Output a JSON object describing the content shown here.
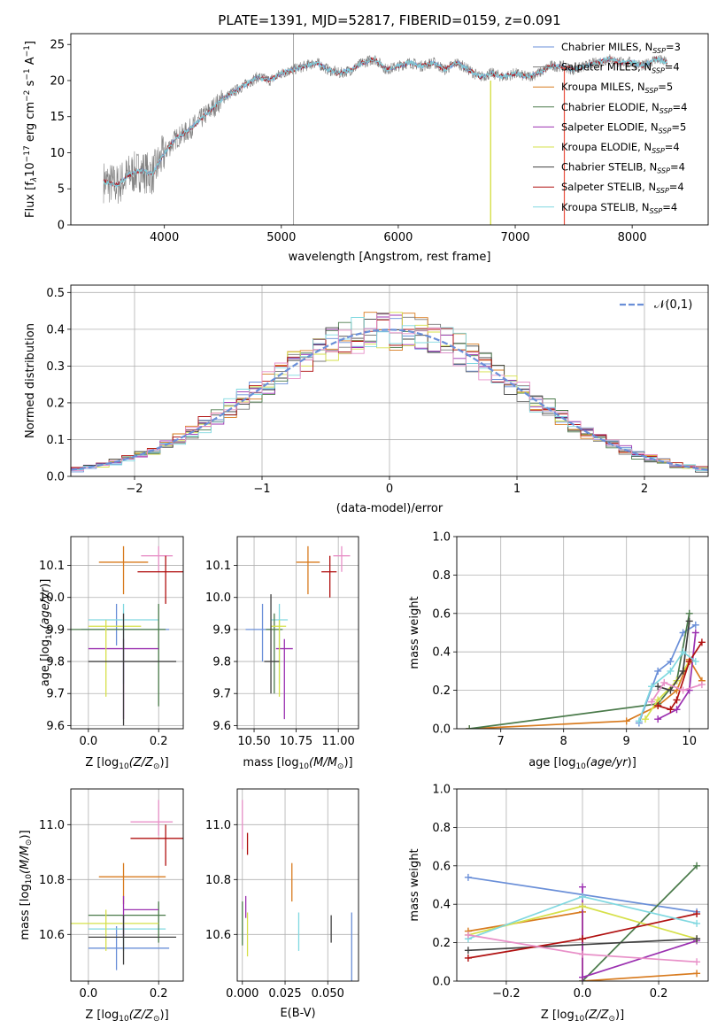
{
  "chart_data": [
    {
      "id": "spectrum",
      "type": "line",
      "title": "PLATE=1391, MJD=52817, FIBERID=0159, z=0.091",
      "xlabel": "wavelength [Angstrom, rest frame]",
      "ylabel": "Flux [f_λ10^-17 erg cm^-2 s^-1 A^-1]",
      "xlim": [
        3200,
        8650
      ],
      "ylim": [
        0,
        26.5
      ],
      "xticks": [
        4000,
        5000,
        6000,
        7000,
        8000
      ],
      "yticks": [
        0,
        5,
        10,
        15,
        20,
        25
      ],
      "observed_color": "#808080",
      "legend_location": "right",
      "series": [
        {
          "name": "Chabrier MILES, N_SSP=3",
          "color": "#6a8fd8"
        },
        {
          "name": "Salpeter MILES, N_SSP=4",
          "color": "#7a7a7a"
        },
        {
          "name": "Kroupa MILES, N_SSP=5",
          "color": "#d87b1f"
        },
        {
          "name": "Chabrier ELODIE, N_SSP=4",
          "color": "#4a7a4a"
        },
        {
          "name": "Salpeter ELODIE, N_SSP=5",
          "color": "#9b30b0"
        },
        {
          "name": "Kroupa ELODIE, N_SSP=4",
          "color": "#d6e04a"
        },
        {
          "name": "Chabrier STELIB, N_SSP=4",
          "color": "#404040"
        },
        {
          "name": "Salpeter STELIB, N_SSP=4",
          "color": "#b01010"
        },
        {
          "name": "Kroupa STELIB, N_SSP=4",
          "color": "#80d8e0"
        }
      ],
      "continuum": {
        "x": [
          3480,
          3600,
          3700,
          3800,
          3900,
          4000,
          4100,
          4200,
          4300,
          4400,
          4500,
          4600,
          4700,
          4800,
          4900,
          5000,
          5100,
          5200,
          5300,
          5400,
          5500,
          5600,
          5700,
          5800,
          5900,
          6000,
          6100,
          6200,
          6300,
          6400,
          6500,
          6600,
          6700,
          6800,
          6900,
          7000,
          7100,
          7200,
          7300,
          7400,
          7500,
          7600,
          7700,
          7800,
          7900,
          8000,
          8100,
          8200,
          8300
        ],
        "y": [
          6.0,
          5.5,
          7.0,
          7.5,
          7.0,
          10.0,
          12.0,
          13.0,
          14.5,
          16.0,
          17.5,
          18.5,
          19.5,
          20.5,
          20.0,
          21.0,
          21.5,
          22.0,
          22.5,
          21.5,
          21.0,
          21.5,
          22.5,
          23.0,
          21.5,
          22.0,
          22.5,
          22.0,
          22.5,
          21.5,
          22.5,
          21.5,
          20.5,
          21.0,
          20.5,
          21.0,
          20.5,
          21.0,
          22.0,
          22.0,
          21.5,
          22.0,
          22.5,
          23.0,
          22.5,
          22.5,
          22.0,
          23.0,
          22.5
        ]
      }
    },
    {
      "id": "residuals",
      "type": "histogram",
      "xlabel": "(data-model)/error",
      "ylabel": "Normed distribution",
      "xlim": [
        -2.5,
        2.5
      ],
      "ylim": [
        0,
        0.52
      ],
      "xticks": [
        -2,
        -1,
        0,
        1,
        2
      ],
      "yticks": [
        0.0,
        0.1,
        0.2,
        0.3,
        0.4,
        0.5
      ],
      "bin_width": 0.1,
      "bin_start": -2.5,
      "legend": "𝒩(0,1)",
      "gaussian_color": "#6a8fd8"
    },
    {
      "id": "age_Z",
      "type": "scatter",
      "xlabel": "Z [log10(Z/Z☉)]",
      "ylabel": "age [log10(age/yr)]",
      "xlim": [
        -0.05,
        0.27
      ],
      "ylim": [
        9.59,
        10.19
      ],
      "xticks": [
        0.0,
        0.2
      ],
      "yticks": [
        9.6,
        9.7,
        9.8,
        9.9,
        10.0,
        10.1
      ],
      "points": [
        {
          "x": 0.08,
          "xerr": [
            0.1,
            0.15
          ],
          "y": 9.9,
          "yerr": [
            0.05,
            0.08
          ],
          "color": "#6a8fd8"
        },
        {
          "x": 0.1,
          "xerr": [
            0.07,
            0.07
          ],
          "y": 10.11,
          "yerr": [
            0.1,
            0.05
          ],
          "color": "#d87b1f"
        },
        {
          "x": 0.2,
          "xerr": [
            0.05,
            0.04
          ],
          "y": 10.13,
          "yerr": [
            0.05,
            0.03
          ],
          "color": "#e890c8"
        },
        {
          "x": 0.22,
          "xerr": [
            0.08,
            0.05
          ],
          "y": 10.08,
          "yerr": [
            0.1,
            0.05
          ],
          "color": "#b01010"
        },
        {
          "x": 0.1,
          "xerr": [
            0.1,
            0.1
          ],
          "y": 9.93,
          "yerr": [
            0.2,
            0.05
          ],
          "color": "#80d8e0"
        },
        {
          "x": 0.2,
          "xerr": [
            0.25,
            0.02
          ],
          "y": 9.9,
          "yerr": [
            0.24,
            0.08
          ],
          "color": "#4a7a4a"
        },
        {
          "x": 0.1,
          "xerr": [
            0.1,
            0.1
          ],
          "y": 9.84,
          "yerr": [
            0.22,
            0.03
          ],
          "color": "#9b30b0"
        },
        {
          "x": 0.05,
          "xerr": [
            0.05,
            0.1
          ],
          "y": 9.91,
          "yerr": [
            0.22,
            0.02
          ],
          "color": "#d6e04a"
        },
        {
          "x": 0.1,
          "xerr": [
            0.1,
            0.15
          ],
          "y": 9.8,
          "yerr": [
            0.2,
            0.15
          ],
          "color": "#404040"
        }
      ]
    },
    {
      "id": "age_mass",
      "type": "scatter",
      "xlabel": "mass [log10(M/M☉)]",
      "ylabel": "",
      "xlim": [
        10.4,
        11.12
      ],
      "ylim": [
        9.59,
        10.19
      ],
      "xticks": [
        10.5,
        10.75,
        11.0
      ],
      "xticklabels": [
        "10.50",
        "10.75",
        "11.00"
      ],
      "yticks": [
        9.6,
        9.7,
        9.8,
        9.9,
        10.0,
        10.1
      ],
      "points": [
        {
          "x": 10.55,
          "xerr": [
            0.1,
            0.05
          ],
          "y": 9.9,
          "yerr": [
            0.1,
            0.08
          ],
          "color": "#6a8fd8"
        },
        {
          "x": 10.82,
          "xerr": [
            0.07,
            0.07
          ],
          "y": 10.11,
          "yerr": [
            0.1,
            0.05
          ],
          "color": "#d87b1f"
        },
        {
          "x": 11.02,
          "xerr": [
            0.05,
            0.05
          ],
          "y": 10.13,
          "yerr": [
            0.05,
            0.03
          ],
          "color": "#e890c8"
        },
        {
          "x": 10.95,
          "xerr": [
            0.05,
            0.04
          ],
          "y": 10.08,
          "yerr": [
            0.08,
            0.05
          ],
          "color": "#b01010"
        },
        {
          "x": 10.65,
          "xerr": [
            0.05,
            0.05
          ],
          "y": 9.93,
          "yerr": [
            0.2,
            0.05
          ],
          "color": "#80d8e0"
        },
        {
          "x": 10.62,
          "xerr": [
            0.05,
            0.05
          ],
          "y": 9.9,
          "yerr": [
            0.2,
            0.05
          ],
          "color": "#4a7a4a"
        },
        {
          "x": 10.68,
          "xerr": [
            0.05,
            0.05
          ],
          "y": 9.84,
          "yerr": [
            0.22,
            0.03
          ],
          "color": "#9b30b0"
        },
        {
          "x": 10.65,
          "xerr": [
            0.05,
            0.04
          ],
          "y": 9.91,
          "yerr": [
            0.22,
            0.02
          ],
          "color": "#d6e04a"
        },
        {
          "x": 10.6,
          "xerr": [
            0.04,
            0.05
          ],
          "y": 9.8,
          "yerr": [
            0.1,
            0.21
          ],
          "color": "#404040"
        }
      ]
    },
    {
      "id": "weight_age",
      "type": "line",
      "xlabel": "age [log10(age/yr)]",
      "ylabel": "mass weight",
      "xlim": [
        6.3,
        10.3
      ],
      "ylim": [
        0,
        1.0
      ],
      "xticks": [
        7,
        8,
        9,
        10
      ],
      "yticks": [
        0.0,
        0.2,
        0.4,
        0.6,
        0.8,
        1.0
      ],
      "series": [
        {
          "color": "#6a8fd8",
          "x": [
            9.2,
            9.5,
            9.7,
            9.9,
            10.1
          ],
          "y": [
            0.03,
            0.3,
            0.35,
            0.5,
            0.54
          ]
        },
        {
          "color": "#d87b1f",
          "x": [
            6.5,
            9.0,
            9.5,
            9.8,
            10.0,
            10.2
          ],
          "y": [
            0.0,
            0.04,
            0.12,
            0.2,
            0.36,
            0.25
          ]
        },
        {
          "color": "#4a7a4a",
          "x": [
            6.5,
            9.5,
            9.8,
            10.0
          ],
          "y": [
            0.0,
            0.13,
            0.25,
            0.6
          ]
        },
        {
          "color": "#9b30b0",
          "x": [
            9.5,
            9.8,
            10.0,
            10.1
          ],
          "y": [
            0.05,
            0.1,
            0.2,
            0.5
          ]
        },
        {
          "color": "#d6e04a",
          "x": [
            9.3,
            9.5,
            9.8,
            10.0
          ],
          "y": [
            0.05,
            0.15,
            0.25,
            0.35
          ]
        },
        {
          "color": "#404040",
          "x": [
            9.5,
            9.7,
            9.9,
            10.0
          ],
          "y": [
            0.22,
            0.2,
            0.3,
            0.56
          ]
        },
        {
          "color": "#b01010",
          "x": [
            9.5,
            9.7,
            9.8,
            10.0,
            10.2
          ],
          "y": [
            0.12,
            0.1,
            0.15,
            0.35,
            0.45
          ]
        },
        {
          "color": "#80d8e0",
          "x": [
            9.2,
            9.4,
            9.7,
            9.9,
            10.1
          ],
          "y": [
            0.04,
            0.22,
            0.3,
            0.4,
            0.35
          ]
        },
        {
          "color": "#e890c8",
          "x": [
            9.4,
            9.6,
            9.9,
            10.2
          ],
          "y": [
            0.14,
            0.24,
            0.2,
            0.23
          ]
        }
      ]
    },
    {
      "id": "mass_Z",
      "type": "scatter",
      "xlabel": "Z [log10(Z/Z☉)]",
      "ylabel": "mass [log10(M/M☉)]",
      "xlim": [
        -0.05,
        0.27
      ],
      "ylim": [
        10.43,
        11.13
      ],
      "xticks": [
        0.0,
        0.2
      ],
      "yticks": [
        10.6,
        10.8,
        11.0
      ],
      "points": [
        {
          "x": 0.08,
          "xerr": [
            0.08,
            0.15
          ],
          "y": 10.55,
          "yerr": [
            0.08,
            0.08
          ],
          "color": "#6a8fd8"
        },
        {
          "x": 0.1,
          "xerr": [
            0.07,
            0.12
          ],
          "y": 10.81,
          "yerr": [
            0.1,
            0.05
          ],
          "color": "#d87b1f"
        },
        {
          "x": 0.2,
          "xerr": [
            0.08,
            0.04
          ],
          "y": 11.01,
          "yerr": [
            0.05,
            0.08
          ],
          "color": "#e890c8"
        },
        {
          "x": 0.22,
          "xerr": [
            0.1,
            0.07
          ],
          "y": 10.95,
          "yerr": [
            0.1,
            0.05
          ],
          "color": "#b01010"
        },
        {
          "x": 0.1,
          "xerr": [
            0.1,
            0.12
          ],
          "y": 10.62,
          "yerr": [
            0.08,
            0.05
          ],
          "color": "#80d8e0"
        },
        {
          "x": 0.2,
          "xerr": [
            0.2,
            0.02
          ],
          "y": 10.67,
          "yerr": [
            0.1,
            0.05
          ],
          "color": "#4a7a4a"
        },
        {
          "x": 0.1,
          "xerr": [
            0.0,
            0.1
          ],
          "y": 10.69,
          "yerr": [
            0.1,
            0.05
          ],
          "color": "#9b30b0"
        },
        {
          "x": 0.05,
          "xerr": [
            0.1,
            0.15
          ],
          "y": 10.64,
          "yerr": [
            0.1,
            0.05
          ],
          "color": "#d6e04a"
        },
        {
          "x": 0.1,
          "xerr": [
            0.1,
            0.15
          ],
          "y": 10.59,
          "yerr": [
            0.1,
            0.08
          ],
          "color": "#404040"
        }
      ]
    },
    {
      "id": "mass_EBV",
      "type": "scatter",
      "xlabel": "E(B-V)",
      "ylabel": "",
      "xlim": [
        -0.003,
        0.068
      ],
      "ylim": [
        10.43,
        11.13
      ],
      "xticks": [
        0.0,
        0.025,
        0.05
      ],
      "xticklabels": [
        "0.000",
        "0.025",
        "0.050"
      ],
      "yticks": [
        10.6,
        10.8,
        11.0
      ],
      "points": [
        {
          "x": 0.064,
          "xerr": [
            0,
            0
          ],
          "y": 10.55,
          "yerr": [
            0.13,
            0.13
          ],
          "color": "#6a8fd8"
        },
        {
          "x": 0.029,
          "xerr": [
            0,
            0
          ],
          "y": 10.79,
          "yerr": [
            0.07,
            0.07
          ],
          "color": "#d87b1f"
        },
        {
          "x": 0.0,
          "xerr": [
            0,
            0
          ],
          "y": 11.0,
          "yerr": [
            0.09,
            0.09
          ],
          "color": "#e890c8"
        },
        {
          "x": 0.003,
          "xerr": [
            0,
            0
          ],
          "y": 10.93,
          "yerr": [
            0.04,
            0.04
          ],
          "color": "#b01010"
        },
        {
          "x": 0.033,
          "xerr": [
            0,
            0
          ],
          "y": 10.61,
          "yerr": [
            0.07,
            0.07
          ],
          "color": "#80d8e0"
        },
        {
          "x": 0.0,
          "xerr": [
            0,
            0
          ],
          "y": 10.64,
          "yerr": [
            0.08,
            0.08
          ],
          "color": "#4a7a4a"
        },
        {
          "x": 0.002,
          "xerr": [
            0,
            0
          ],
          "y": 10.7,
          "yerr": [
            0.04,
            0.04
          ],
          "color": "#9b30b0"
        },
        {
          "x": 0.003,
          "xerr": [
            0,
            0
          ],
          "y": 10.6,
          "yerr": [
            0.08,
            0.08
          ],
          "color": "#d6e04a"
        },
        {
          "x": 0.052,
          "xerr": [
            0,
            0
          ],
          "y": 10.62,
          "yerr": [
            0.05,
            0.05
          ],
          "color": "#404040"
        }
      ]
    },
    {
      "id": "weight_Z",
      "type": "line",
      "xlabel": "Z [log10(Z/Z☉)]",
      "ylabel": "mass weight",
      "xlim": [
        -0.33,
        0.33
      ],
      "ylim": [
        0,
        1.0
      ],
      "xticks": [
        -0.2,
        0.0,
        0.2
      ],
      "xticklabels": [
        "−0.2",
        "0.0",
        "0.2"
      ],
      "yticks": [
        0.0,
        0.2,
        0.4,
        0.6,
        0.8,
        1.0
      ],
      "series": [
        {
          "color": "#6a8fd8",
          "x": [
            -0.3,
            0.3
          ],
          "y": [
            0.54,
            0.36
          ]
        },
        {
          "color": "#d87b1f",
          "x": [
            -0.3,
            0.0,
            0.0,
            0.3
          ],
          "y": [
            0.26,
            0.36,
            0.0,
            0.04
          ]
        },
        {
          "color": "#4a7a4a",
          "x": [
            0.0,
            0.3
          ],
          "y": [
            0.0,
            0.6
          ]
        },
        {
          "color": "#9b30b0",
          "x": [
            0.0,
            0.0,
            0.3
          ],
          "y": [
            0.49,
            0.02,
            0.21
          ]
        },
        {
          "color": "#d6e04a",
          "x": [
            -0.3,
            0.0,
            0.3
          ],
          "y": [
            0.24,
            0.39,
            0.22
          ]
        },
        {
          "color": "#404040",
          "x": [
            -0.3,
            0.3
          ],
          "y": [
            0.16,
            0.22
          ]
        },
        {
          "color": "#b01010",
          "x": [
            -0.3,
            0.0,
            0.3
          ],
          "y": [
            0.12,
            0.22,
            0.35
          ]
        },
        {
          "color": "#80d8e0",
          "x": [
            -0.3,
            0.0,
            0.3
          ],
          "y": [
            0.22,
            0.44,
            0.3
          ]
        },
        {
          "color": "#e890c8",
          "x": [
            -0.3,
            0.0,
            0.3
          ],
          "y": [
            0.24,
            0.14,
            0.1
          ]
        }
      ]
    }
  ]
}
